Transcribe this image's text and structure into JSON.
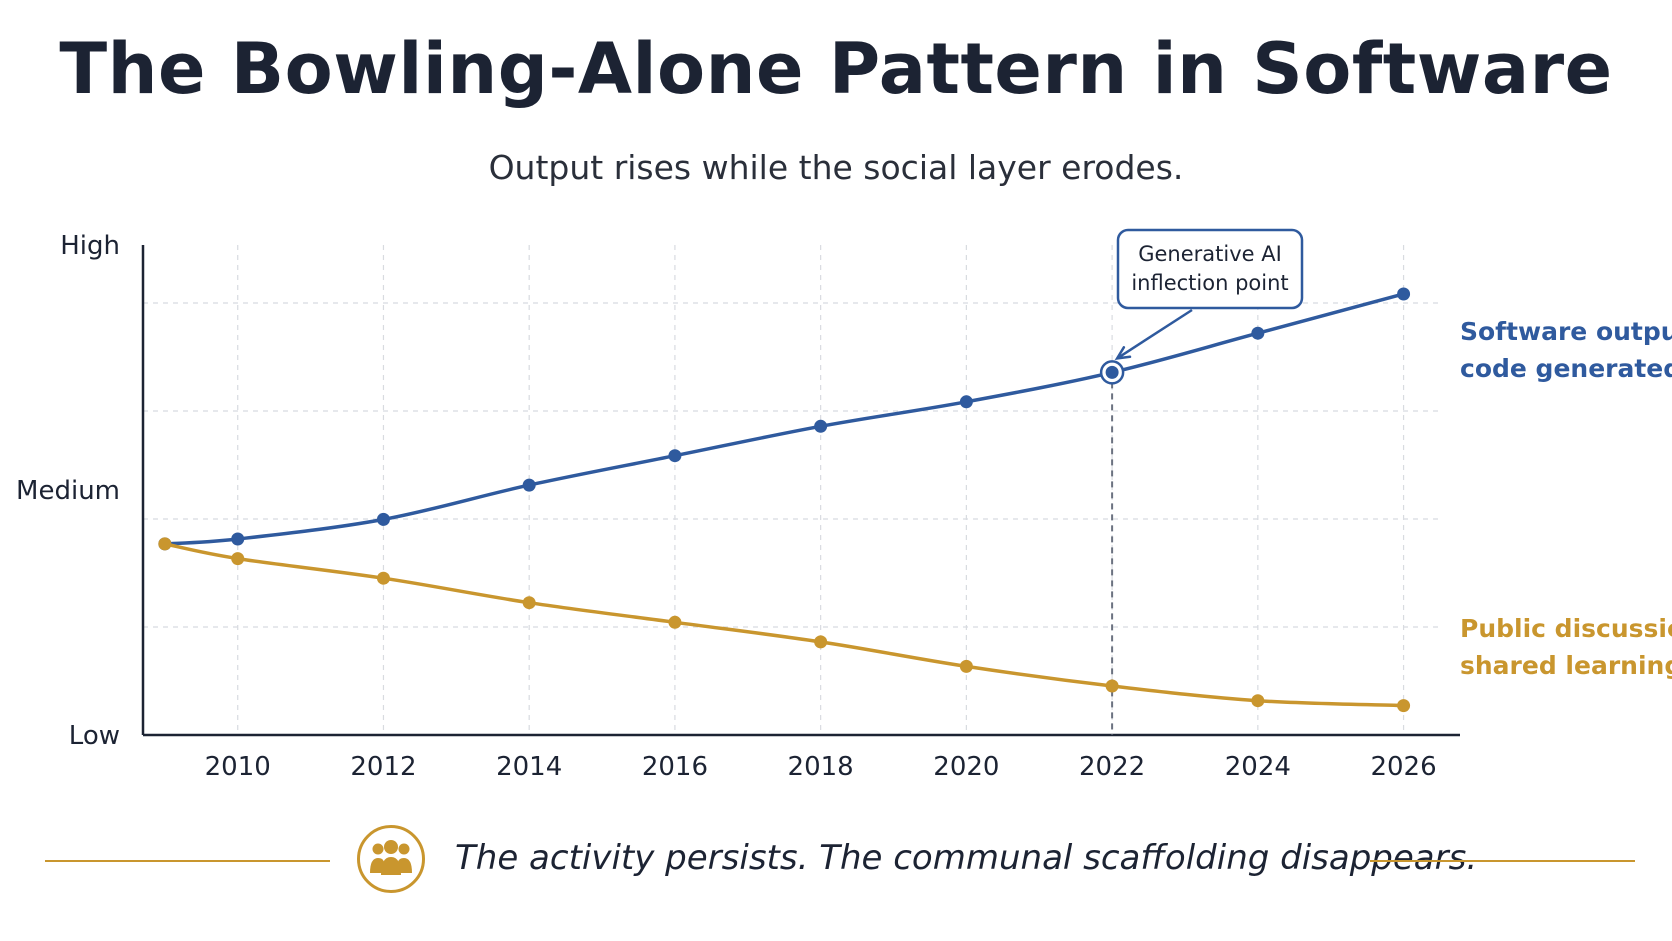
{
  "title": "The Bowling-Alone Pattern in Software",
  "subtitle": "Output rises while the social layer erodes.",
  "footer": {
    "text": "The activity persists. The communal scaffolding disappears.",
    "icon": "people-group-icon"
  },
  "colors": {
    "blue": "#2f5a9e",
    "gold": "#c9962e",
    "text": "#1c2333",
    "grid": "#d8dbe0"
  },
  "chart_data": {
    "type": "line",
    "title": "The Bowling-Alone Pattern in Software",
    "subtitle": "Output rises while the social layer erodes.",
    "x_ticks": [
      2010,
      2012,
      2014,
      2016,
      2018,
      2020,
      2022,
      2024,
      2026
    ],
    "xlim": [
      2008.7,
      2026.5
    ],
    "y_ticks": [
      {
        "label": "High",
        "value": 1.0
      },
      {
        "label": "Medium",
        "value": 0.5
      },
      {
        "label": "Low",
        "value": 0.0
      }
    ],
    "ylim": [
      0,
      1
    ],
    "grid": true,
    "series": [
      {
        "name": "Software output / code generated",
        "color": "#2f5a9e",
        "x": [
          2009,
          2010,
          2012,
          2014,
          2016,
          2018,
          2020,
          2022,
          2024,
          2026
        ],
        "y": [
          0.39,
          0.4,
          0.44,
          0.51,
          0.57,
          0.63,
          0.68,
          0.74,
          0.82,
          0.9
        ]
      },
      {
        "name": "Public discussion / shared learning",
        "color": "#c9962e",
        "x": [
          2009,
          2010,
          2012,
          2014,
          2016,
          2018,
          2020,
          2022,
          2024,
          2026
        ],
        "y": [
          0.39,
          0.36,
          0.32,
          0.27,
          0.23,
          0.19,
          0.14,
          0.1,
          0.07,
          0.06
        ]
      }
    ],
    "series_labels": [
      {
        "lines": [
          "Software output /",
          "code generated"
        ],
        "color": "#2f5a9e"
      },
      {
        "lines": [
          "Public discussion /",
          "shared learning"
        ],
        "color": "#c9962e"
      }
    ],
    "annotation": {
      "lines": [
        "Generative AI",
        "inflection point"
      ],
      "x": 2022,
      "series_index": 0
    }
  }
}
